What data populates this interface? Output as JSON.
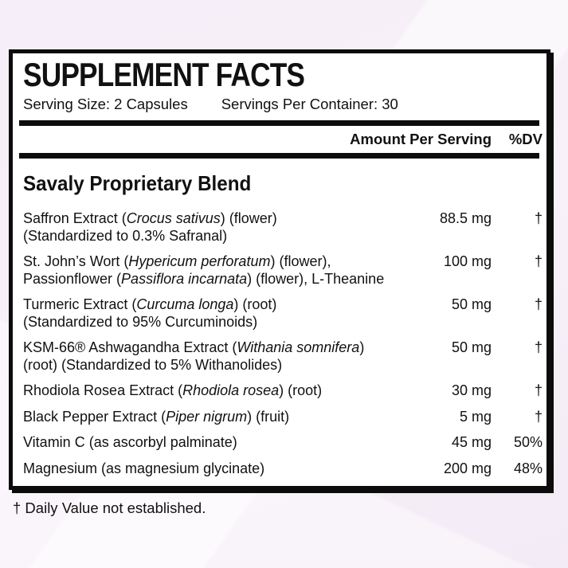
{
  "background": {
    "base": "#f6eef8",
    "highlight_stripe": "#fdf8fd",
    "panel": "#ffffff",
    "border": "#0c0c0c",
    "text": "#111111"
  },
  "label": {
    "title": "SUPPLEMENT FACTS",
    "serving_size": "Serving Size: 2 Capsules",
    "servings_per_container": "Servings Per Container: 30",
    "columns": {
      "amount": "Amount Per Serving",
      "dv": "%DV"
    },
    "blend_heading": "Savaly Proprietary Blend",
    "rows": [
      {
        "lines": [
          "Saffron Extract (*Crocus sativus*) (flower)",
          "(Standardized to 0.3% Safranal)"
        ],
        "amount": "88.5 mg",
        "dv": "†"
      },
      {
        "lines": [
          "St. John’s Wort (*Hypericum perforatum*) (flower),",
          "Passionflower (*Passiflora incarnata*) (flower), L-Theanine"
        ],
        "amount": "100 mg",
        "dv": "†"
      },
      {
        "lines": [
          "Turmeric Extract (*Curcuma longa*) (root)",
          "(Standardized to 95% Curcuminoids)"
        ],
        "amount": "50 mg",
        "dv": "†"
      },
      {
        "lines": [
          "KSM-66® Ashwagandha Extract (*Withania somnifera*)",
          "(root) (Standardized to 5% Withanolides)"
        ],
        "amount": "50 mg",
        "dv": "†"
      },
      {
        "lines": [
          "Rhodiola Rosea Extract (*Rhodiola rosea*) (root)"
        ],
        "amount": "30 mg",
        "dv": "†"
      },
      {
        "lines": [
          "Black Pepper Extract (*Piper nigrum*) (fruit)"
        ],
        "amount": "5 mg",
        "dv": "†"
      },
      {
        "lines": [
          "Vitamin C (as ascorbyl palminate)"
        ],
        "amount": "45 mg",
        "dv": "50%"
      },
      {
        "lines": [
          "Magnesium (as magnesium glycinate)"
        ],
        "amount": "200 mg",
        "dv": "48%"
      }
    ],
    "footnote": "† Daily Value not established."
  }
}
